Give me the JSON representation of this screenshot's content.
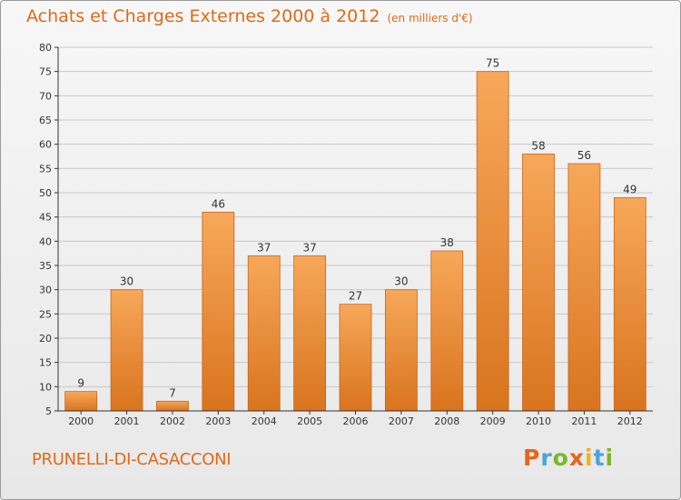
{
  "header": {
    "title": "Achats et Charges Externes 2000 à 2012",
    "unit": "(en milliers d'€)"
  },
  "footer": {
    "commune": "PRUNELLI-DI-CASACCONI",
    "logo_text": "Proxiti",
    "logo_colors": [
      "#e8641c",
      "#4aa3df",
      "#7ab828",
      "#e8641c",
      "#f0b020",
      "#4aa3df",
      "#7ab828"
    ]
  },
  "colors": {
    "bar_light": "#f7a85a",
    "bar_dark": "#d9741e",
    "bar_edge": "#c9651a",
    "grid": "#c8c8c8",
    "axis": "#333333"
  },
  "chart_data": {
    "type": "bar",
    "categories": [
      "2000",
      "2001",
      "2002",
      "2003",
      "2004",
      "2005",
      "2006",
      "2007",
      "2008",
      "2009",
      "2010",
      "2011",
      "2012"
    ],
    "values": [
      9,
      30,
      7,
      46,
      37,
      37,
      27,
      30,
      38,
      75,
      58,
      56,
      49
    ],
    "ylim": [
      5,
      80
    ],
    "yticks": [
      5,
      10,
      15,
      20,
      25,
      30,
      35,
      40,
      45,
      50,
      55,
      60,
      65,
      70,
      75,
      80
    ],
    "grid": true,
    "data_labels": true
  }
}
